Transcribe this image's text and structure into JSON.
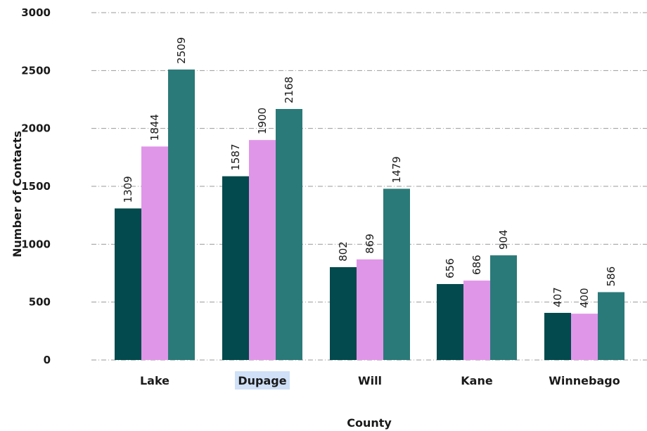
{
  "chart_data": {
    "type": "bar",
    "title": "",
    "xlabel": "County",
    "ylabel": "Number of Contacts",
    "ylim": [
      0,
      3000
    ],
    "yticks": [
      0,
      500,
      1000,
      1500,
      2000,
      2500,
      3000
    ],
    "grid": true,
    "legend": "none",
    "categories": [
      "Lake",
      "Dupage",
      "Will",
      "Kane",
      "Winnebago"
    ],
    "highlighted_category": "Dupage",
    "highlight_color": "#cfe0f7",
    "series": [
      {
        "color": "#024a4d",
        "values": [
          1309,
          1587,
          802,
          656,
          407
        ]
      },
      {
        "color": "#e096e8",
        "values": [
          1844,
          1900,
          869,
          686,
          400
        ]
      },
      {
        "color": "#2a7a79",
        "values": [
          2509,
          2168,
          1479,
          904,
          586
        ]
      }
    ],
    "value_labels": [
      [
        "1309",
        "1587",
        "802",
        "656",
        "407"
      ],
      [
        "1844",
        "1900",
        "869",
        "686",
        "400"
      ],
      [
        "2509",
        "2168",
        "1479",
        "904",
        "586"
      ]
    ],
    "ytick_labels": [
      "0",
      "500",
      "1000",
      "1500",
      "2000",
      "2500",
      "3000"
    ]
  }
}
